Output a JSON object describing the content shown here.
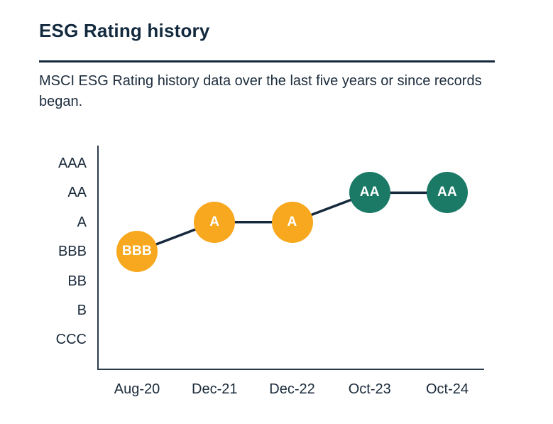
{
  "page": {
    "title": "ESG Rating history",
    "subtitle": "MSCI ESG Rating history data over the last five years or since records began."
  },
  "colors": {
    "navy": "#12293E",
    "axis": "#2B3B4D",
    "line": "#16293C",
    "amber": "#F7A81E",
    "teal": "#1A7A66",
    "marker_text": "#FFFFFF",
    "background": "#FFFFFF"
  },
  "chart_data": {
    "type": "line",
    "title": "ESG Rating history",
    "xlabel": "",
    "ylabel": "",
    "grid": false,
    "legend": false,
    "x_categories": [
      "Aug-20",
      "Dec-21",
      "Dec-22",
      "Oct-23",
      "Oct-24"
    ],
    "y_categories_top_to_bottom": [
      "AAA",
      "AA",
      "A",
      "BBB",
      "BB",
      "B",
      "CCC"
    ],
    "points": [
      {
        "x": "Aug-20",
        "rating": "BBB",
        "color": "#F7A81E"
      },
      {
        "x": "Dec-21",
        "rating": "A",
        "color": "#F7A81E"
      },
      {
        "x": "Dec-22",
        "rating": "A",
        "color": "#F7A81E"
      },
      {
        "x": "Oct-23",
        "rating": "AA",
        "color": "#1A7A66"
      },
      {
        "x": "Oct-24",
        "rating": "AA",
        "color": "#1A7A66"
      }
    ],
    "line_color": "#16293C"
  }
}
